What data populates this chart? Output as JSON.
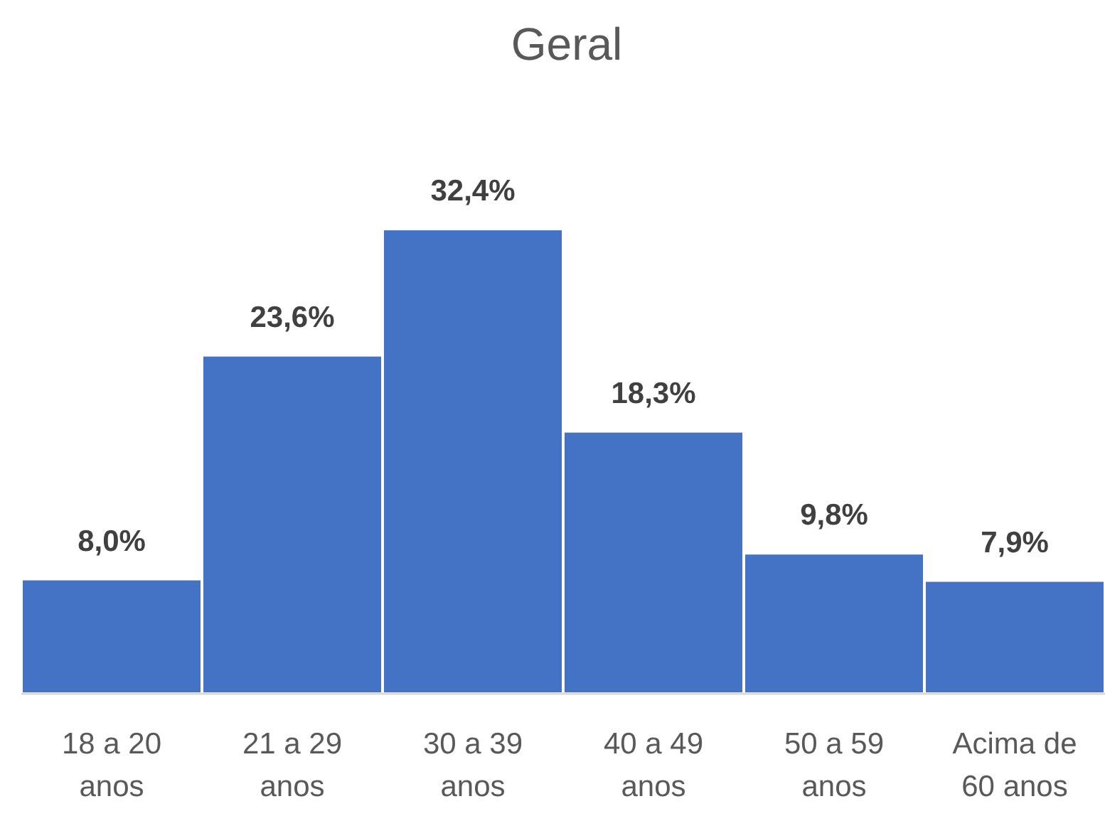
{
  "chart_data": {
    "type": "bar",
    "title": "Geral",
    "categories": [
      "18 a 20 anos",
      "21 a 29 anos",
      "30 a 39 anos",
      "40 a 49 anos",
      "50 a 59 anos",
      "Acima de 60 anos"
    ],
    "values": [
      8.0,
      23.6,
      32.4,
      18.3,
      9.8,
      7.9
    ],
    "value_labels": [
      "8,0%",
      "23,6%",
      "32,4%",
      "18,3%",
      "9,8%",
      "7,9%"
    ],
    "color": "#4472c4"
  }
}
